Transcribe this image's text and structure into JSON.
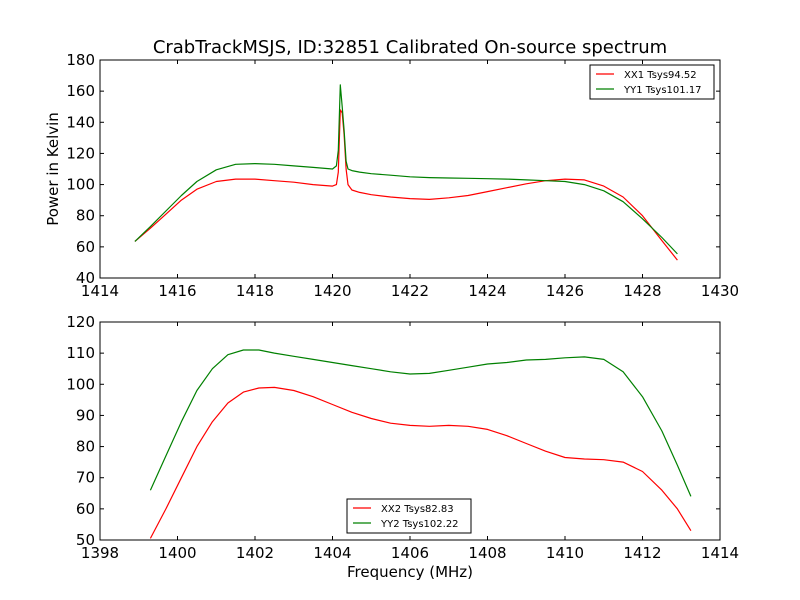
{
  "chart_data": [
    {
      "type": "line",
      "title": "CrabTrackMSJS, ID:32851 Calibrated On-source spectrum",
      "xlabel": "",
      "ylabel": "Power in Kelvin",
      "xlim": [
        1414,
        1430
      ],
      "ylim": [
        40,
        180
      ],
      "xticks": [
        1414,
        1416,
        1418,
        1420,
        1422,
        1424,
        1426,
        1428,
        1430
      ],
      "yticks": [
        40,
        60,
        80,
        100,
        120,
        140,
        160,
        180
      ],
      "legend": "top-right",
      "grid": false,
      "series": [
        {
          "name": "XX1 Tsys94.52",
          "color": "#ff0000",
          "x": [
            1414.9,
            1415.3,
            1415.7,
            1416.1,
            1416.5,
            1417.0,
            1417.5,
            1418.0,
            1418.5,
            1419.0,
            1419.5,
            1420.0,
            1420.1,
            1420.15,
            1420.2,
            1420.25,
            1420.3,
            1420.35,
            1420.4,
            1420.5,
            1420.7,
            1421.0,
            1421.5,
            1422.0,
            1422.5,
            1423.0,
            1423.5,
            1424.0,
            1424.5,
            1425.0,
            1425.5,
            1426.0,
            1426.5,
            1427.0,
            1427.5,
            1428.0,
            1428.5,
            1428.9
          ],
          "y": [
            63.5,
            72,
            81,
            90,
            97,
            102,
            103.5,
            103.5,
            102.5,
            101.5,
            100,
            99,
            100,
            108,
            148,
            146,
            132,
            110,
            100,
            96.5,
            95,
            93.5,
            92,
            91,
            90.5,
            91.5,
            93,
            95.5,
            98,
            100.5,
            102.5,
            103.5,
            103,
            99,
            92,
            80,
            64,
            51.5
          ]
        },
        {
          "name": "YY1 Tsys101.17",
          "color": "#008000",
          "x": [
            1414.9,
            1415.3,
            1415.7,
            1416.1,
            1416.5,
            1417.0,
            1417.5,
            1418.0,
            1418.5,
            1419.0,
            1419.5,
            1420.0,
            1420.1,
            1420.15,
            1420.2,
            1420.25,
            1420.3,
            1420.35,
            1420.4,
            1420.5,
            1420.7,
            1421.0,
            1421.5,
            1422.0,
            1422.5,
            1423.0,
            1423.5,
            1424.0,
            1424.5,
            1425.0,
            1425.5,
            1426.0,
            1426.5,
            1427.0,
            1427.5,
            1428.0,
            1428.5,
            1428.9
          ],
          "y": [
            63.5,
            73,
            83,
            93,
            102,
            109.5,
            113,
            113.5,
            113,
            112,
            111,
            110,
            112,
            122,
            164,
            150,
            135,
            115,
            110,
            109,
            108,
            107,
            106,
            105,
            104.5,
            104.2,
            104,
            103.8,
            103.5,
            103,
            102.5,
            102,
            100,
            96,
            89,
            78,
            66,
            55.5
          ]
        }
      ]
    },
    {
      "type": "line",
      "title": "",
      "xlabel": "Frequency (MHz)",
      "ylabel": "",
      "xlim": [
        1398,
        1414
      ],
      "ylim": [
        50,
        120
      ],
      "xticks": [
        1398,
        1400,
        1402,
        1404,
        1406,
        1408,
        1410,
        1412,
        1414
      ],
      "yticks": [
        50,
        60,
        70,
        80,
        90,
        100,
        110,
        120
      ],
      "legend": "bottom-center",
      "grid": false,
      "series": [
        {
          "name": "XX2 Tsys82.83",
          "color": "#ff0000",
          "x": [
            1399.3,
            1399.7,
            1400.1,
            1400.5,
            1400.9,
            1401.3,
            1401.7,
            1402.1,
            1402.5,
            1403.0,
            1403.5,
            1404.0,
            1404.5,
            1405.0,
            1405.5,
            1406.0,
            1406.5,
            1407.0,
            1407.5,
            1408.0,
            1408.5,
            1409.0,
            1409.5,
            1410.0,
            1410.5,
            1411.0,
            1411.5,
            1412.0,
            1412.5,
            1412.9,
            1413.25
          ],
          "y": [
            50.5,
            60,
            70,
            80,
            88,
            94,
            97.5,
            98.8,
            99,
            98,
            96,
            93.5,
            91,
            89,
            87.5,
            86.8,
            86.5,
            86.8,
            86.5,
            85.5,
            83.5,
            81,
            78.5,
            76.5,
            76,
            75.8,
            75,
            72,
            66,
            60,
            53
          ]
        },
        {
          "name": "YY2 Tsys102.22",
          "color": "#008000",
          "x": [
            1399.3,
            1399.7,
            1400.1,
            1400.5,
            1400.9,
            1401.3,
            1401.7,
            1402.1,
            1402.5,
            1403.0,
            1403.5,
            1404.0,
            1404.5,
            1405.0,
            1405.5,
            1406.0,
            1406.5,
            1407.0,
            1407.5,
            1408.0,
            1408.5,
            1409.0,
            1409.5,
            1410.0,
            1410.5,
            1411.0,
            1411.5,
            1412.0,
            1412.5,
            1412.9,
            1413.25
          ],
          "y": [
            66,
            77,
            88,
            98,
            105,
            109.5,
            111,
            111,
            110,
            109,
            108,
            107,
            106,
            105,
            104,
            103.3,
            103.5,
            104.5,
            105.5,
            106.5,
            107,
            107.8,
            108,
            108.5,
            108.8,
            108,
            104,
            96,
            85,
            74,
            64
          ]
        }
      ]
    }
  ]
}
